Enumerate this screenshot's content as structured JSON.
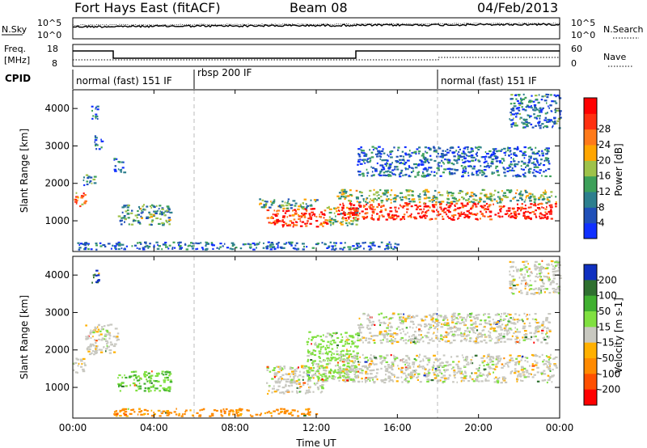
{
  "header": {
    "station": "Fort Hays East (fitACF)",
    "beam": "Beam 08",
    "date": "04/Feb/2013"
  },
  "noise_panel": {
    "left_label": "N.Sky",
    "right_label": "N.Search",
    "left_ticks": [
      "10^5",
      "10^0"
    ],
    "right_ticks": [
      "10^5",
      "10^0"
    ]
  },
  "freq_panel": {
    "left_label_1": "Freq.",
    "left_label_2": "[MHz]",
    "right_label": "Nave",
    "left_ticks": [
      "18",
      "8"
    ],
    "right_ticks": [
      "60",
      "0"
    ]
  },
  "cpid": {
    "label": "CPID",
    "modes": [
      "normal (fast) 151 IF",
      "rbsp 200 IF",
      "normal (fast) 151 IF"
    ]
  },
  "x_axis": {
    "title": "Time UT",
    "ticks": [
      "00:00",
      "04:00",
      "08:00",
      "12:00",
      "16:00",
      "20:00",
      "00:00"
    ]
  },
  "chart_data": [
    {
      "type": "heatmap",
      "panel": "power",
      "ylabel": "Slant Range [km]",
      "yticks": [
        "1000",
        "2000",
        "3000",
        "4000"
      ],
      "ylim": [
        180,
        4500
      ],
      "xlim_hours": [
        0,
        24
      ],
      "colorbar": {
        "label": "Power [dB]",
        "ticks": [
          "4",
          "8",
          "12",
          "16",
          "20",
          "24",
          "28"
        ],
        "colors": [
          "#1030ff",
          "#2050b8",
          "#2d7f8e",
          "#3da05a",
          "#9ec24a",
          "#ffa500",
          "#ff7a1a",
          "#ff3010",
          "#ff0000"
        ]
      },
      "regions": [
        {
          "t": [
            0.0,
            0.6
          ],
          "r": [
            1400,
            1800
          ],
          "level": 0.7
        },
        {
          "t": [
            0.5,
            1.1
          ],
          "r": [
            1950,
            2250
          ],
          "level": 0.3
        },
        {
          "t": [
            0.9,
            1.3
          ],
          "r": [
            3700,
            4100
          ],
          "level": 0.2
        },
        {
          "t": [
            1.0,
            1.4
          ],
          "r": [
            2900,
            3300
          ],
          "level": 0.2
        },
        {
          "t": [
            2.0,
            2.5
          ],
          "r": [
            2300,
            2700
          ],
          "level": 0.2
        },
        {
          "t": [
            2.2,
            4.8
          ],
          "r": [
            900,
            1450
          ],
          "level": 0.35
        },
        {
          "t": [
            9.5,
            12.5
          ],
          "r": [
            850,
            1350
          ],
          "level": 0.85
        },
        {
          "t": [
            9.0,
            12.0
          ],
          "r": [
            1350,
            1600
          ],
          "level": 0.4
        },
        {
          "t": [
            12.5,
            14.0
          ],
          "r": [
            900,
            1400
          ],
          "level": 0.45
        },
        {
          "t": [
            13.0,
            23.8
          ],
          "r": [
            1050,
            1500
          ],
          "level": 0.9
        },
        {
          "t": [
            13.0,
            23.8
          ],
          "r": [
            1500,
            1850
          ],
          "level": 0.45
        },
        {
          "t": [
            14.0,
            23.5
          ],
          "r": [
            2200,
            3000
          ],
          "level": 0.2
        },
        {
          "t": [
            21.5,
            24.0
          ],
          "r": [
            3500,
            4400
          ],
          "level": 0.25
        },
        {
          "t": [
            0.2,
            16.0
          ],
          "r": [
            250,
            450
          ],
          "level": 0.2
        }
      ]
    },
    {
      "type": "heatmap",
      "panel": "velocity",
      "ylabel": "Slant Range [km]",
      "yticks": [
        "1000",
        "2000",
        "3000",
        "4000"
      ],
      "ylim": [
        180,
        4500
      ],
      "xlim_hours": [
        0,
        24
      ],
      "colorbar": {
        "label": "Velocity [m s-1]",
        "ticks": [
          "200",
          "100",
          "50",
          "15",
          "-15",
          "-50",
          "-100",
          "-200"
        ],
        "colors": [
          "#1030c0",
          "#2f7030",
          "#40b030",
          "#80e040",
          "#c8c8c0",
          "#ffb000",
          "#ff8a00",
          "#ff5000",
          "#ff0000"
        ]
      },
      "regions": [
        {
          "t": [
            0.0,
            0.6
          ],
          "r": [
            1400,
            1800
          ],
          "vel": 0
        },
        {
          "t": [
            0.9,
            1.3
          ],
          "r": [
            3800,
            4200
          ],
          "vel": 210
        },
        {
          "t": [
            0.6,
            2.2
          ],
          "r": [
            1900,
            2700
          ],
          "vel": 0
        },
        {
          "t": [
            2.2,
            4.8
          ],
          "r": [
            900,
            1450
          ],
          "vel": 45
        },
        {
          "t": [
            2.0,
            12.0
          ],
          "r": [
            250,
            450
          ],
          "vel": -60
        },
        {
          "t": [
            9.5,
            12.5
          ],
          "r": [
            850,
            1600
          ],
          "vel": 0
        },
        {
          "t": [
            11.5,
            14.0
          ],
          "r": [
            1200,
            2500
          ],
          "vel": 30
        },
        {
          "t": [
            13.0,
            23.8
          ],
          "r": [
            1150,
            1900
          ],
          "vel": 0
        },
        {
          "t": [
            14.0,
            23.5
          ],
          "r": [
            2200,
            3000
          ],
          "vel": 0
        },
        {
          "t": [
            21.5,
            24.0
          ],
          "r": [
            3500,
            4400
          ],
          "vel": 0
        }
      ]
    }
  ]
}
